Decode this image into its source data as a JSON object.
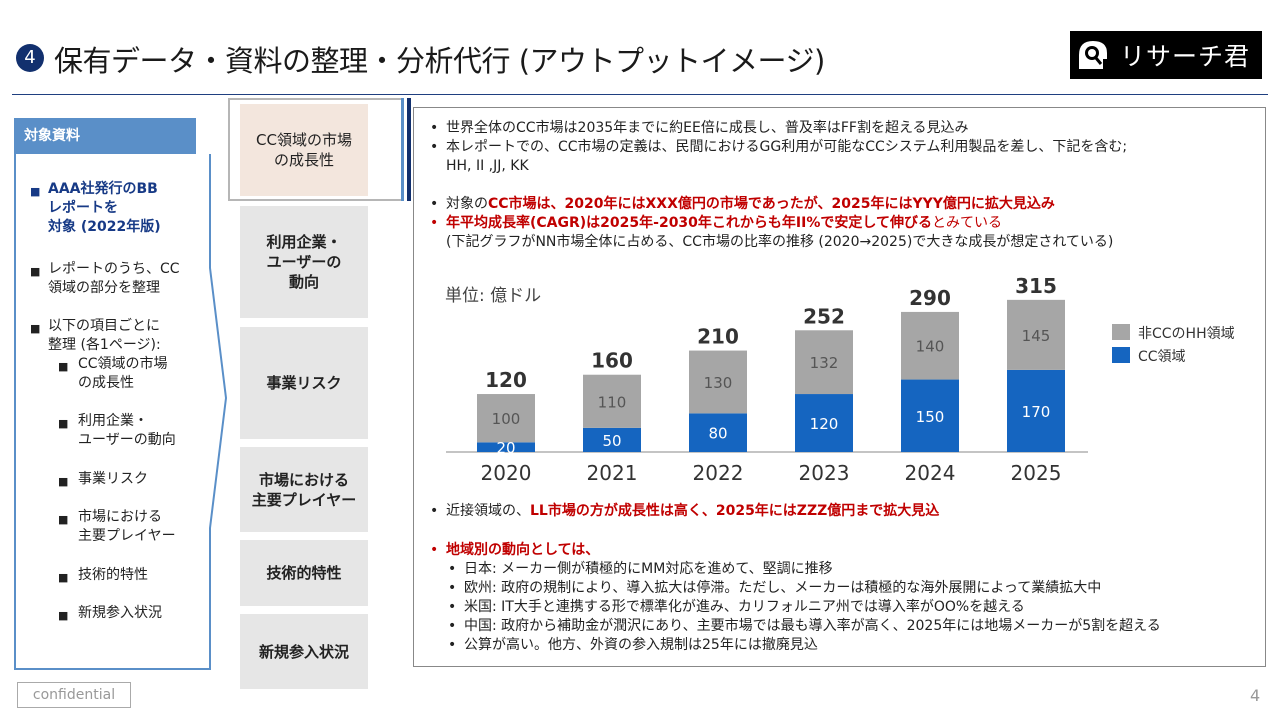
{
  "header": {
    "number": "4",
    "title": "保有データ・資料の整理・分析代行 (アウトプットイメージ)",
    "logo_text": "リサーチ君"
  },
  "left_panel": {
    "heading": "対象資料",
    "item1": [
      "AAA社発行のBB",
      "レポートを",
      "対象 (2022年版)"
    ],
    "item2": [
      "レポートのうち、CC",
      "領域の部分を整理"
    ],
    "item3": [
      "以下の項目ごとに",
      "整理 (各1ページ):"
    ],
    "subitems": [
      [
        "CC領域の市場",
        "の成長性"
      ],
      [
        "利用企業・",
        "ユーザーの動向"
      ],
      [
        "事業リスク"
      ],
      [
        "市場における",
        "主要プレイヤー"
      ],
      [
        "技術的特性"
      ],
      [
        "新規参入状況"
      ]
    ]
  },
  "categories": [
    [
      "CC領域の市場",
      "の成長性"
    ],
    [
      "利用企業・",
      "ユーザーの",
      "動向"
    ],
    [
      "事業リスク"
    ],
    [
      "市場における",
      "主要プレイヤー"
    ],
    [
      "技術的特性"
    ],
    [
      "新規参入状況"
    ]
  ],
  "content": {
    "b1": "世界全体のCC市場は2035年までに約EE倍に成長し、普及率はFF割を超える見込み",
    "b2": "本レポートでの、CC市場の定義は、民間におけるGG利用が可能なCCシステム利用製品を差し、下記を含む;",
    "b2_cont": "HH, II ,JJ, KK",
    "b3_pre": "対象の",
    "b3_red": "CC市場は、2020年にはXXX億円の市場であったが、2025年にはYYY億円に拡大見込み",
    "b4_red": "年平均成長率(CAGR)は2025年-2030年これからも年II%で安定して伸びる",
    "b4_post": "とみている",
    "b4_cont": "(下記グラフがNN市場全体に占める、CC市場の比率の推移 (2020→2025)で大きな成長が想定されている)",
    "b5_pre": "近接領域の、",
    "b5_red": "LL市場の方が成長性は高く、2025年にはZZZ億円まで拡大見込",
    "b6_red": "地域別の動向としては、",
    "regions": [
      "日本: メーカー側が積極的にMM対応を進めて、堅調に推移",
      "欧州: 政府の規制により、導入拡大は停滞。ただし、メーカーは積極的な海外展開によって業績拡大中",
      "米国: IT大手と連携する形で標準化が進み、カリフォルニア州では導入率がOO%を越える",
      "中国: 政府から補助金が潤沢にあり、主要市場では最も導入率が高く、2025年には地場メーカーが5割を超える"
    ],
    "region_cont": "公算が高い。他方、外資の参入規制は25年には撤廃見込"
  },
  "chart_data": {
    "type": "bar",
    "stacked": true,
    "unit_label": "単位: 億ドル",
    "categories": [
      "2020",
      "2021",
      "2022",
      "2023",
      "2024",
      "2025"
    ],
    "series": [
      {
        "name": "CC領域",
        "color": "#1565c0",
        "values": [
          20,
          50,
          80,
          120,
          150,
          170
        ]
      },
      {
        "name": "非CCのHH領域",
        "color": "#a6a6a6",
        "values": [
          100,
          110,
          130,
          132,
          140,
          145
        ]
      }
    ],
    "totals": [
      120,
      160,
      210,
      252,
      290,
      315
    ],
    "legend_order": [
      "非CCのHH領域",
      "CC領域"
    ],
    "legend_position": "right",
    "ylim": [
      0,
      315
    ]
  },
  "footer": {
    "confidential": "confidential",
    "page": "4"
  }
}
